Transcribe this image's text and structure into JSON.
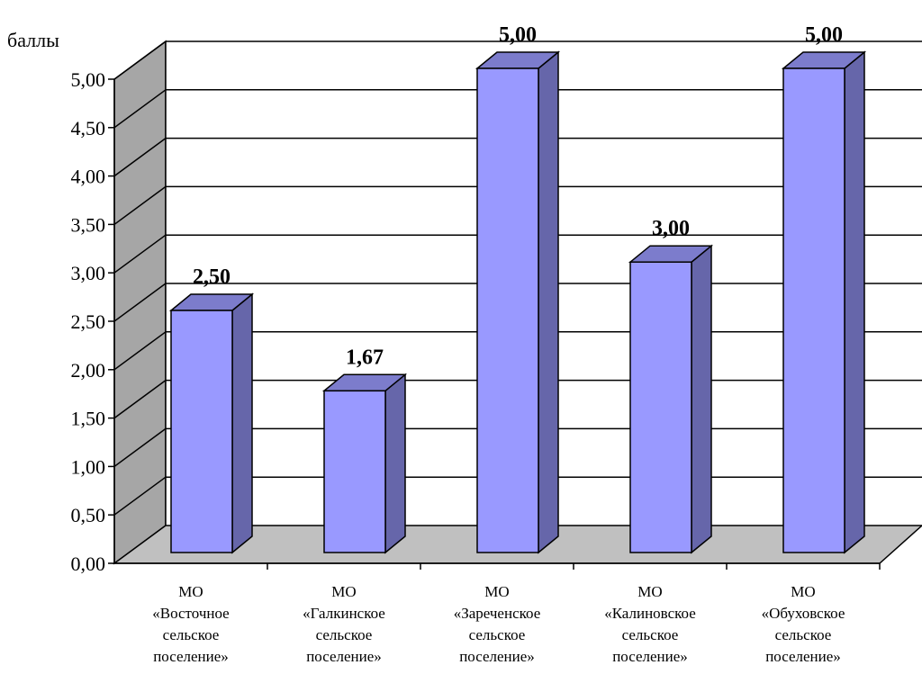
{
  "chart_data": {
    "type": "bar",
    "style": "3d-column",
    "ylabel": "баллы",
    "ylim": [
      0,
      5
    ],
    "yticks": [
      "0,00",
      "0,50",
      "1,00",
      "1,50",
      "2,00",
      "2,50",
      "3,00",
      "3,50",
      "4,00",
      "4,50",
      "5,00"
    ],
    "grid": true,
    "categories": [
      [
        "МО",
        "«Восточное",
        "сельское",
        "поселение»"
      ],
      [
        "МО",
        "«Галкинское",
        "сельское",
        "поселение»"
      ],
      [
        "МО",
        "«Зареченское",
        "сельское",
        "поселение»"
      ],
      [
        "МО",
        "«Калиновское",
        "сельское",
        "поселение»"
      ],
      [
        "МО",
        "«Обуховское",
        "сельское",
        "поселение»"
      ]
    ],
    "values": [
      2.5,
      1.67,
      5.0,
      3.0,
      5.0
    ],
    "value_labels": [
      "2,50",
      "1,67",
      "5,00",
      "3,00",
      "5,00"
    ],
    "colors": {
      "bar_front": "#9999ff",
      "bar_side": "#6666aa",
      "bar_top": "#7c7ccc",
      "back_wall": "#ffffff",
      "side_wall": "#a6a6a6",
      "floor": "#c0c0c0",
      "gridline": "#000000"
    }
  }
}
